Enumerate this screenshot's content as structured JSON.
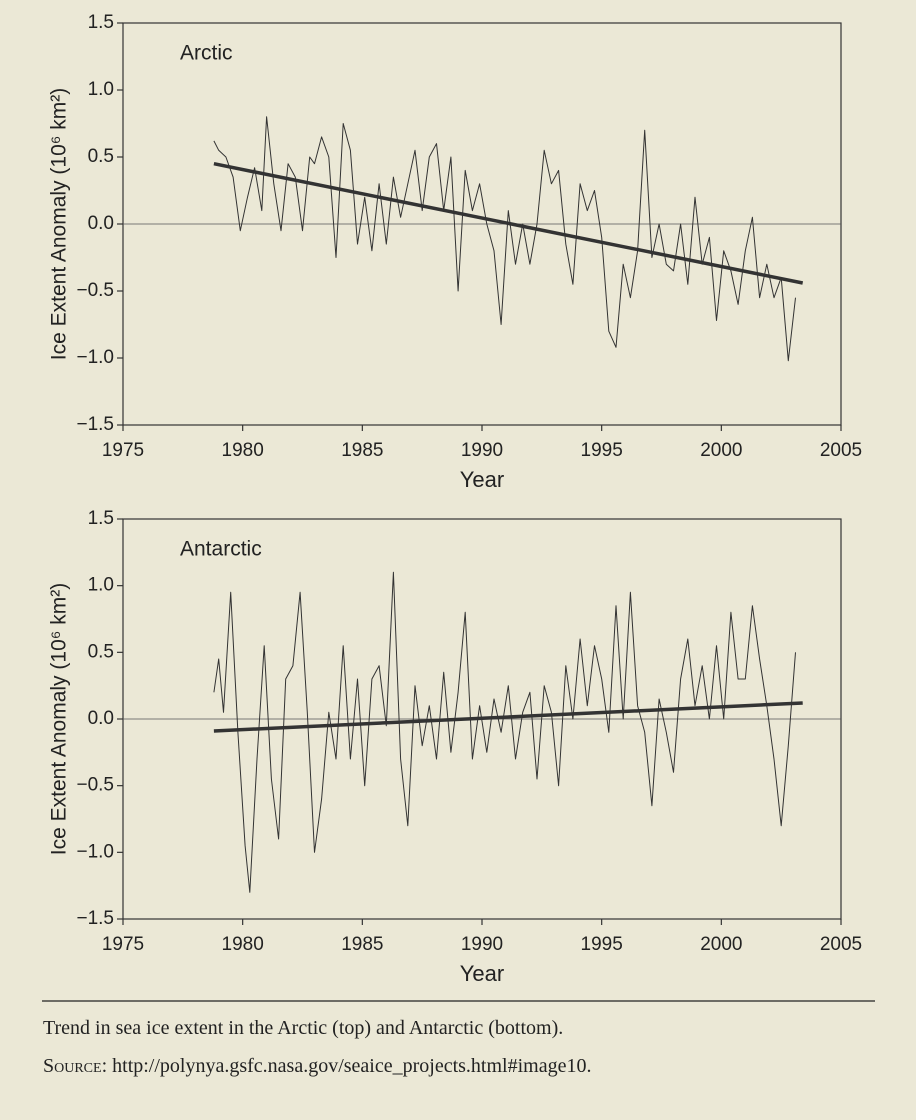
{
  "chart_data": [
    {
      "type": "line",
      "title": "Arctic",
      "xlabel": "Year",
      "ylabel": "Ice Extent Anomaly (10⁶ km²)",
      "xlim": [
        1975,
        2005
      ],
      "xticks": [
        1975,
        1980,
        1985,
        1990,
        1995,
        2000,
        2005
      ],
      "ylim": [
        -1.5,
        1.5
      ],
      "yticks": [
        {
          "value": -1.5,
          "label": "−1.5"
        },
        {
          "value": -1.0,
          "label": "−1.0"
        },
        {
          "value": -0.5,
          "label": "−0.5"
        },
        {
          "value": 0,
          "label": "0.0"
        },
        {
          "value": 0.5,
          "label": "0.5"
        },
        {
          "value": 1.0,
          "label": "1.0"
        },
        {
          "value": 1.5,
          "label": "1.5"
        }
      ],
      "zero_line": true,
      "series": [
        {
          "color": "#333333",
          "width": 1,
          "x": [
            1978.8,
            1979.0,
            1979.3,
            1979.6,
            1979.9,
            1980.2,
            1980.5,
            1980.8,
            1981.0,
            1981.3,
            1981.6,
            1981.9,
            1982.2,
            1982.5,
            1982.8,
            1983.0,
            1983.3,
            1983.6,
            1983.9,
            1984.2,
            1984.5,
            1984.8,
            1985.1,
            1985.4,
            1985.7,
            1986.0,
            1986.3,
            1986.6,
            1986.9,
            1987.2,
            1987.5,
            1987.8,
            1988.1,
            1988.4,
            1988.7,
            1989.0,
            1989.3,
            1989.6,
            1989.9,
            1990.2,
            1990.5,
            1990.8,
            1991.1,
            1991.4,
            1991.7,
            1992.0,
            1992.3,
            1992.6,
            1992.9,
            1993.2,
            1993.5,
            1993.8,
            1994.1,
            1994.4,
            1994.7,
            1995.0,
            1995.3,
            1995.6,
            1995.9,
            1996.2,
            1996.5,
            1996.8,
            1997.1,
            1997.4,
            1997.7,
            1998.0,
            1998.3,
            1998.6,
            1998.9,
            1999.2,
            1999.5,
            1999.8,
            2000.1,
            2000.4,
            2000.7,
            2001.0,
            2001.3,
            2001.6,
            2001.9,
            2002.2,
            2002.5,
            2002.8,
            2003.1
          ],
          "values": [
            0.62,
            0.55,
            0.5,
            0.35,
            -0.05,
            0.2,
            0.42,
            0.1,
            0.8,
            0.3,
            -0.05,
            0.45,
            0.35,
            -0.05,
            0.5,
            0.45,
            0.65,
            0.5,
            -0.25,
            0.75,
            0.55,
            -0.15,
            0.2,
            -0.2,
            0.3,
            -0.15,
            0.35,
            0.05,
            0.3,
            0.55,
            0.1,
            0.5,
            0.6,
            0.1,
            0.5,
            -0.5,
            0.4,
            0.1,
            0.3,
            0.0,
            -0.2,
            -0.75,
            0.1,
            -0.3,
            0.0,
            -0.3,
            0.0,
            0.55,
            0.3,
            0.4,
            -0.15,
            -0.45,
            0.3,
            0.1,
            0.25,
            -0.1,
            -0.8,
            -0.92,
            -0.3,
            -0.55,
            -0.2,
            0.7,
            -0.25,
            0.0,
            -0.3,
            -0.35,
            0.0,
            -0.45,
            0.2,
            -0.3,
            -0.1,
            -0.72,
            -0.2,
            -0.35,
            -0.6,
            -0.2,
            0.05,
            -0.55,
            -0.3,
            -0.55,
            -0.4,
            -1.02,
            -0.55
          ]
        },
        {
          "color": "#333333",
          "width": 3.5,
          "x": [
            1978.8,
            2003.4
          ],
          "values": [
            0.45,
            -0.44
          ]
        }
      ]
    },
    {
      "type": "line",
      "title": "Antarctic",
      "xlabel": "Year",
      "ylabel": "Ice Extent Anomaly (10⁶ km²)",
      "xlim": [
        1975,
        2005
      ],
      "xticks": [
        1975,
        1980,
        1985,
        1990,
        1995,
        2000,
        2005
      ],
      "ylim": [
        -1.5,
        1.5
      ],
      "yticks": [
        {
          "value": -1.5,
          "label": "−1.5"
        },
        {
          "value": -1.0,
          "label": "−1.0"
        },
        {
          "value": -0.5,
          "label": "−0.5"
        },
        {
          "value": 0,
          "label": "0.0"
        },
        {
          "value": 0.5,
          "label": "0.5"
        },
        {
          "value": 1.0,
          "label": "1.0"
        },
        {
          "value": 1.5,
          "label": "1.5"
        }
      ],
      "zero_line": true,
      "series": [
        {
          "color": "#333333",
          "width": 1,
          "x": [
            1978.8,
            1979.0,
            1979.2,
            1979.5,
            1979.8,
            1980.1,
            1980.3,
            1980.6,
            1980.9,
            1981.2,
            1981.5,
            1981.8,
            1982.1,
            1982.4,
            1982.7,
            1983.0,
            1983.3,
            1983.6,
            1983.9,
            1984.2,
            1984.5,
            1984.8,
            1985.1,
            1985.4,
            1985.7,
            1986.0,
            1986.3,
            1986.6,
            1986.9,
            1987.2,
            1987.5,
            1987.8,
            1988.1,
            1988.4,
            1988.7,
            1989.0,
            1989.3,
            1989.6,
            1989.9,
            1990.2,
            1990.5,
            1990.8,
            1991.1,
            1991.4,
            1991.7,
            1992.0,
            1992.3,
            1992.6,
            1992.9,
            1993.2,
            1993.5,
            1993.8,
            1994.1,
            1994.4,
            1994.7,
            1995.0,
            1995.3,
            1995.6,
            1995.9,
            1996.2,
            1996.5,
            1996.8,
            1997.1,
            1997.4,
            1997.7,
            1998.0,
            1998.3,
            1998.6,
            1998.9,
            1999.2,
            1999.5,
            1999.8,
            2000.1,
            2000.4,
            2000.7,
            2001.0,
            2001.3,
            2001.6,
            2001.9,
            2002.2,
            2002.5,
            2002.8,
            2003.1
          ],
          "values": [
            0.2,
            0.45,
            0.05,
            0.95,
            -0.1,
            -0.95,
            -1.3,
            -0.3,
            0.55,
            -0.45,
            -0.9,
            0.3,
            0.4,
            0.95,
            0.05,
            -1.0,
            -0.6,
            0.05,
            -0.3,
            0.55,
            -0.3,
            0.3,
            -0.5,
            0.3,
            0.4,
            -0.05,
            1.1,
            -0.3,
            -0.8,
            0.25,
            -0.2,
            0.1,
            -0.3,
            0.35,
            -0.25,
            0.2,
            0.8,
            -0.3,
            0.1,
            -0.25,
            0.15,
            -0.1,
            0.25,
            -0.3,
            0.05,
            0.2,
            -0.45,
            0.25,
            0.05,
            -0.5,
            0.4,
            0.0,
            0.6,
            0.1,
            0.55,
            0.3,
            -0.1,
            0.85,
            0.0,
            0.95,
            0.1,
            -0.1,
            -0.65,
            0.15,
            -0.1,
            -0.4,
            0.3,
            0.6,
            0.1,
            0.4,
            0.0,
            0.55,
            0.0,
            0.8,
            0.3,
            0.3,
            0.85,
            0.45,
            0.1,
            -0.3,
            -0.8,
            -0.2,
            0.5
          ]
        },
        {
          "color": "#333333",
          "width": 3.5,
          "x": [
            1978.8,
            2003.4
          ],
          "values": [
            -0.09,
            0.12
          ]
        }
      ]
    }
  ],
  "caption": {
    "text": "Trend in sea ice extent in the Arctic (top) and Antarctic (bottom).",
    "source_label": "Source:",
    "source_url": "http://polynya.gsfc.nasa.gov/seaice_projects.html#image10."
  }
}
